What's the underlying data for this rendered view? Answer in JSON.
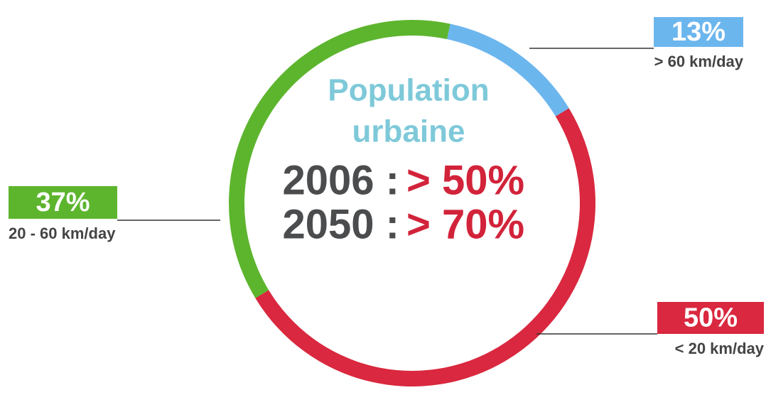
{
  "chart_data": {
    "type": "pie",
    "donut": true,
    "categories": [
      "> 60 km/day",
      "< 20 km/day",
      "20 - 60 km/day"
    ],
    "values": [
      13,
      50,
      37
    ],
    "value_labels": [
      "13%",
      "50%",
      "37%"
    ],
    "colors": [
      "#6cb6ee",
      "#d9283f",
      "#5db52e"
    ],
    "center_title": [
      "Population",
      "urbaine"
    ],
    "annotations": [
      {
        "label": "2006 :",
        "value": "> 50%"
      },
      {
        "label": "2050 :",
        "value": "> 70%"
      }
    ]
  }
}
